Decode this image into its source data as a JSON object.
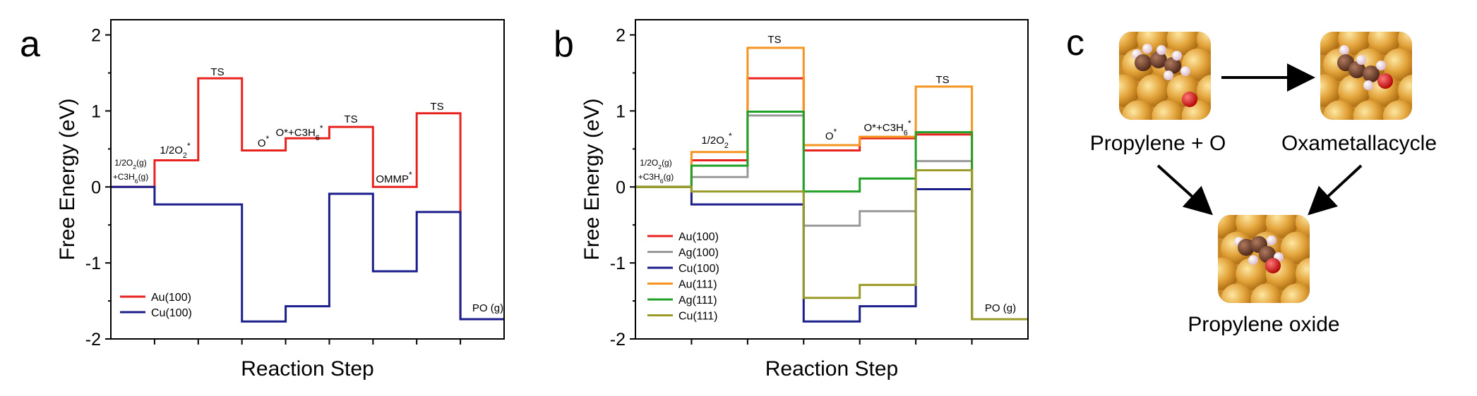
{
  "chart_data": [
    {
      "panel": "a",
      "type": "line",
      "xlabel": "Reaction Step",
      "ylabel": "Free Energy (eV)",
      "ylim": [
        -2,
        2.2
      ],
      "yticks": [
        "2",
        "1",
        "0",
        "-1",
        "-2"
      ],
      "legend_placement": "bottom-left",
      "annotations": [
        {
          "text": "1/2O2(g)",
          "step": 0
        },
        {
          "text": "+C3H6(g)",
          "step": 0
        },
        {
          "text": "1/2O2*",
          "step": 1
        },
        {
          "text": "TS",
          "step": 2
        },
        {
          "text": "O*",
          "step": 3
        },
        {
          "text": "O*+C3H6*",
          "step": 4
        },
        {
          "text": "TS",
          "step": 5
        },
        {
          "text": "OMMP*",
          "step": 6
        },
        {
          "text": "TS",
          "step": 7
        },
        {
          "text": "PO (g)",
          "step": 8
        }
      ],
      "series": [
        {
          "name": "Au(100)",
          "color": "#e8231f",
          "values": [
            0,
            0.35,
            1.43,
            0.48,
            0.64,
            0.79,
            0,
            0.97,
            -1.74
          ]
        },
        {
          "name": "Cu(100)",
          "color": "#1c1e8c",
          "values": [
            0,
            -0.23,
            -0.23,
            -1.77,
            -1.57,
            -0.09,
            -1.11,
            -0.33,
            -1.74
          ]
        }
      ]
    },
    {
      "panel": "b",
      "type": "line",
      "xlabel": "Reaction Step",
      "ylabel": "Free Energy (eV)",
      "ylim": [
        -2,
        2.2
      ],
      "yticks": [
        "2",
        "1",
        "0",
        "-1",
        "-2"
      ],
      "legend_placement": "bottom-left",
      "annotations": [
        {
          "text": "1/2O2(g)",
          "step": 0
        },
        {
          "text": "+C3H6(g)",
          "step": 0
        },
        {
          "text": "1/2O2*",
          "step": 1
        },
        {
          "text": "TS",
          "step": 2
        },
        {
          "text": "O*",
          "step": 3
        },
        {
          "text": "O*+C3H6*",
          "step": 4
        },
        {
          "text": "TS",
          "step": 5
        },
        {
          "text": "PO (g)",
          "step": 6
        }
      ],
      "series": [
        {
          "name": "Au(100)",
          "color": "#e8231f",
          "values": [
            0,
            0.35,
            1.43,
            0.48,
            0.64,
            0.69,
            -1.74
          ]
        },
        {
          "name": "Ag(100)",
          "color": "#999999",
          "values": [
            0,
            0.13,
            0.94,
            -0.51,
            -0.32,
            0.34,
            -1.74
          ]
        },
        {
          "name": "Cu(100)",
          "color": "#1c1e8c",
          "values": [
            0,
            -0.23,
            -0.23,
            -1.77,
            -1.57,
            -0.03,
            -1.74
          ]
        },
        {
          "name": "Au(111)",
          "color": "#f5941f",
          "values": [
            0,
            0.46,
            1.83,
            0.55,
            0.66,
            1.32,
            -1.74
          ]
        },
        {
          "name": "Ag(111)",
          "color": "#21a028",
          "values": [
            0,
            0.28,
            0.99,
            -0.06,
            0.11,
            0.72,
            -1.74
          ]
        },
        {
          "name": "Cu(111)",
          "color": "#9a9a28",
          "values": [
            0,
            -0.06,
            -0.06,
            -1.46,
            -1.29,
            0.22,
            -1.74
          ]
        }
      ]
    }
  ],
  "panels": {
    "a": "a",
    "b": "b",
    "c": "c"
  },
  "scheme": {
    "label_left": "Propylene + O",
    "label_right": "Oxametallacycle",
    "label_bottom": "Propylene oxide"
  },
  "colors": {
    "surface": "#e3a33a",
    "surface_dark": "#b8761c",
    "carbon": "#6b3a28",
    "hydrogen": "#f0d8e6",
    "oxygen": "#e01010",
    "arrow": "#000000"
  }
}
